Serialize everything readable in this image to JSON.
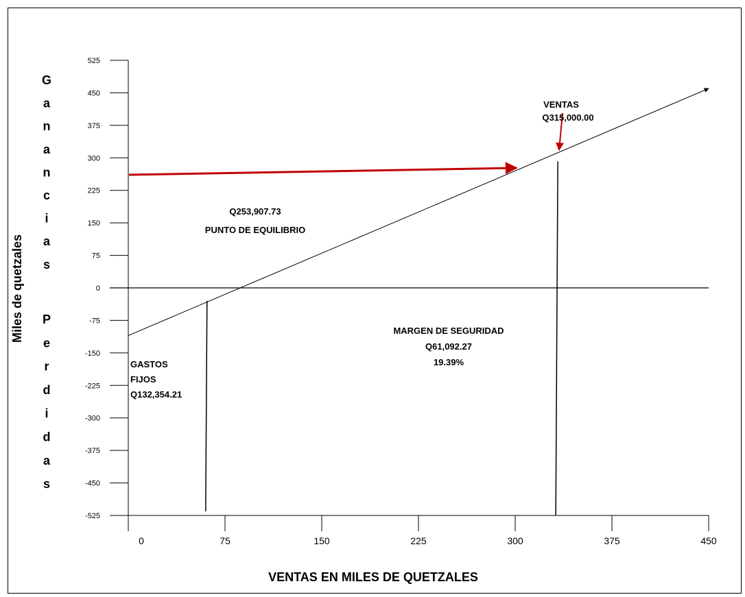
{
  "chart_data": {
    "type": "line",
    "xlabel": "VENTAS EN MILES DE QUETZALES",
    "ylabel": "Miles de quetzales",
    "vertical_label_top": "Ganancias",
    "vertical_label_bottom": "Perdidas",
    "x_ticks": [
      0,
      75,
      150,
      225,
      300,
      375,
      450
    ],
    "y_ticks": [
      525,
      450,
      375,
      300,
      225,
      150,
      75,
      0,
      -75,
      -150,
      -225,
      -300,
      -375,
      -450,
      -525
    ],
    "xlim": [
      0,
      450
    ],
    "ylim": [
      -525,
      525
    ],
    "grid": false,
    "series": [
      {
        "x": [
          0,
          450
        ],
        "y": [
          -110,
          460
        ],
        "color": "#000000"
      }
    ],
    "reference_lines": {
      "fixed_costs_x": 60,
      "sales_x": 332
    },
    "annotations": {
      "ventas_line1": "VENTAS",
      "ventas_line2": "Q315,000.00",
      "equilibrio_value": "Q253,907.73",
      "equilibrio_label": "PUNTO DE EQUILIBRIO",
      "margen_label": "MARGEN DE SEGURIDAD",
      "margen_value": "Q61,092.27",
      "margen_pct": "19.39%",
      "gastos_line1": "GASTOS",
      "gastos_line2": "FIJOS",
      "gastos_value": "Q132,354.21"
    },
    "colors": {
      "arrow": "#c00000",
      "line": "#000000"
    }
  }
}
